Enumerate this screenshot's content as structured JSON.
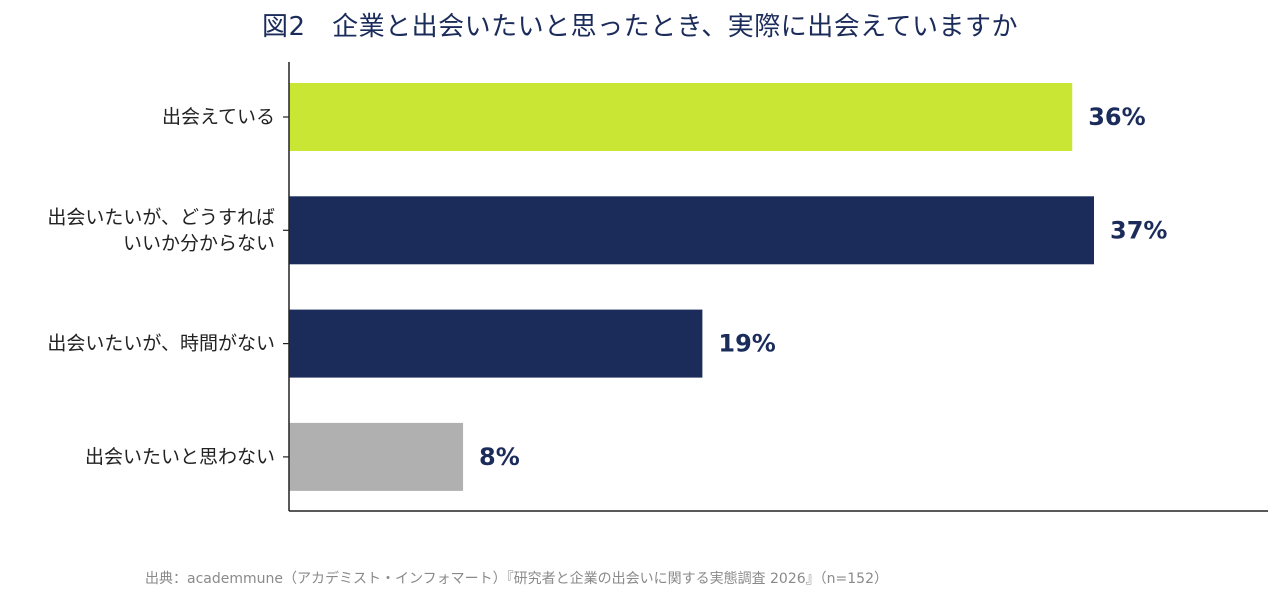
{
  "chart_data": {
    "type": "bar",
    "orientation": "horizontal",
    "title": "図2　企業と出会いたいと思ったとき、実際に出会えていますか",
    "categories": [
      [
        "出会えている"
      ],
      [
        "出会いたいが、どうすれば",
        "いいか分からない"
      ],
      [
        "出会いたいが、時間がない"
      ],
      [
        "出会いたいと思わない"
      ]
    ],
    "values": [
      36,
      37,
      19,
      8
    ],
    "value_labels": [
      "36%",
      "37%",
      "19%",
      "8%"
    ],
    "bar_colors": [
      "#c8e633",
      "#1b2c5b",
      "#1b2c5b",
      "#b0b0b0"
    ],
    "xlim": [
      0,
      45
    ],
    "grid": false,
    "legend": "none",
    "xlabel": "",
    "ylabel": ""
  },
  "source": "出典：academmune（アカデミスト・インフォマート）『研究者と企業の出会いに関する実態調査 2026』（n=152）"
}
